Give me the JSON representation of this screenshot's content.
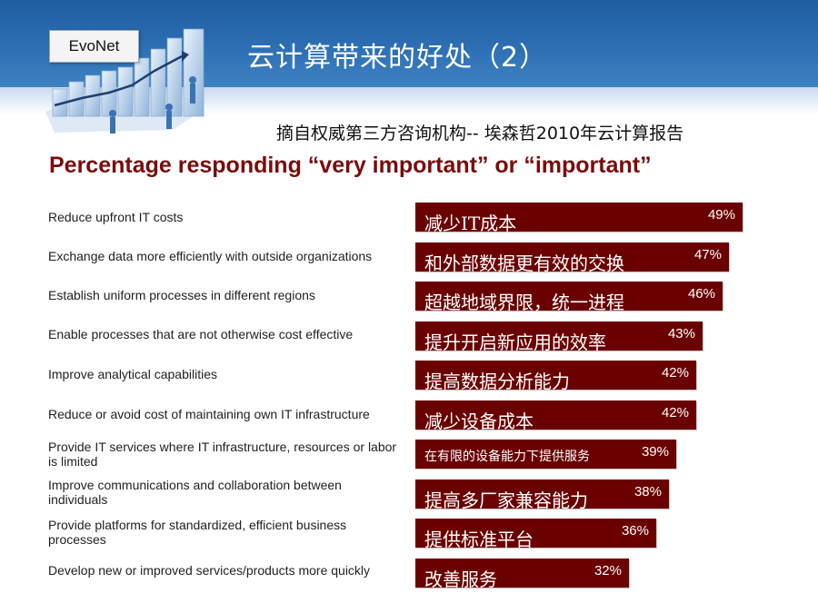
{
  "brand": "EvoNet",
  "title": "云计算带来的好处（2）",
  "source": "摘自权威第三方咨询机构-- 埃森哲2010年云计算报告",
  "colors": {
    "header": "#2d6fb4",
    "bar": "#6b0000",
    "heading": "#7a0b0b"
  },
  "chart_data": {
    "type": "bar",
    "orientation": "horizontal",
    "title": "Percentage responding “very important” or “important”",
    "value_suffix": "%",
    "categories": [
      "Reduce upfront IT costs",
      "Exchange data more efficiently with outside organizations",
      "Establish uniform processes in different regions",
      "Enable processes that are not otherwise cost effective",
      "Improve analytical capabilities",
      "Reduce or avoid cost of maintaining own IT infrastructure",
      "Provide IT services where IT infrastructure, resources or labor is limited",
      "Improve communications and collaboration between individuals",
      "Provide platforms for standardized, efficient business processes",
      "Develop new or improved services/products more quickly"
    ],
    "bar_labels": [
      "减少IT成本",
      "和外部数据更有效的交换",
      "超越地域界限，统一进程",
      "提升开启新应用的效率",
      "提高数据分析能力",
      "减少设备成本",
      "在有限的设备能力下提供服务",
      "提高多厂家兼容能力",
      "提供标准平台",
      "改善服务"
    ],
    "values": [
      49,
      47,
      46,
      43,
      42,
      42,
      39,
      38,
      36,
      32
    ]
  }
}
